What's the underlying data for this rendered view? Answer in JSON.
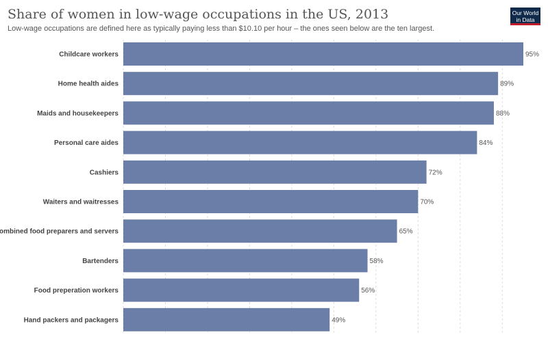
{
  "logo": {
    "line1": "Our World",
    "line2": "in Data"
  },
  "chart_data": {
    "type": "bar",
    "orientation": "horizontal",
    "title": "Share of women in low-wage occupations in the US, 2013",
    "subtitle": "Low-wage occupations are defined here as typically paying less than $10.10 per hour – the ones seen below are the ten largest.",
    "categories": [
      "Childcare workers",
      "Home health aides",
      "Maids and housekeepers",
      "Personal care aides",
      "Cashiers",
      "Waiters and waitresses",
      "Combined food preparers and servers",
      "Bartenders",
      "Food preperation workers",
      "Hand packers and packagers"
    ],
    "values": [
      95,
      89,
      88,
      84,
      72,
      70,
      65,
      58,
      56,
      49
    ],
    "value_labels": [
      "95%",
      "89%",
      "88%",
      "84%",
      "72%",
      "70%",
      "65%",
      "58%",
      "56%",
      "49%"
    ],
    "xlim": [
      0,
      95
    ],
    "grid": true,
    "bar_color": "#6b7ea8"
  }
}
